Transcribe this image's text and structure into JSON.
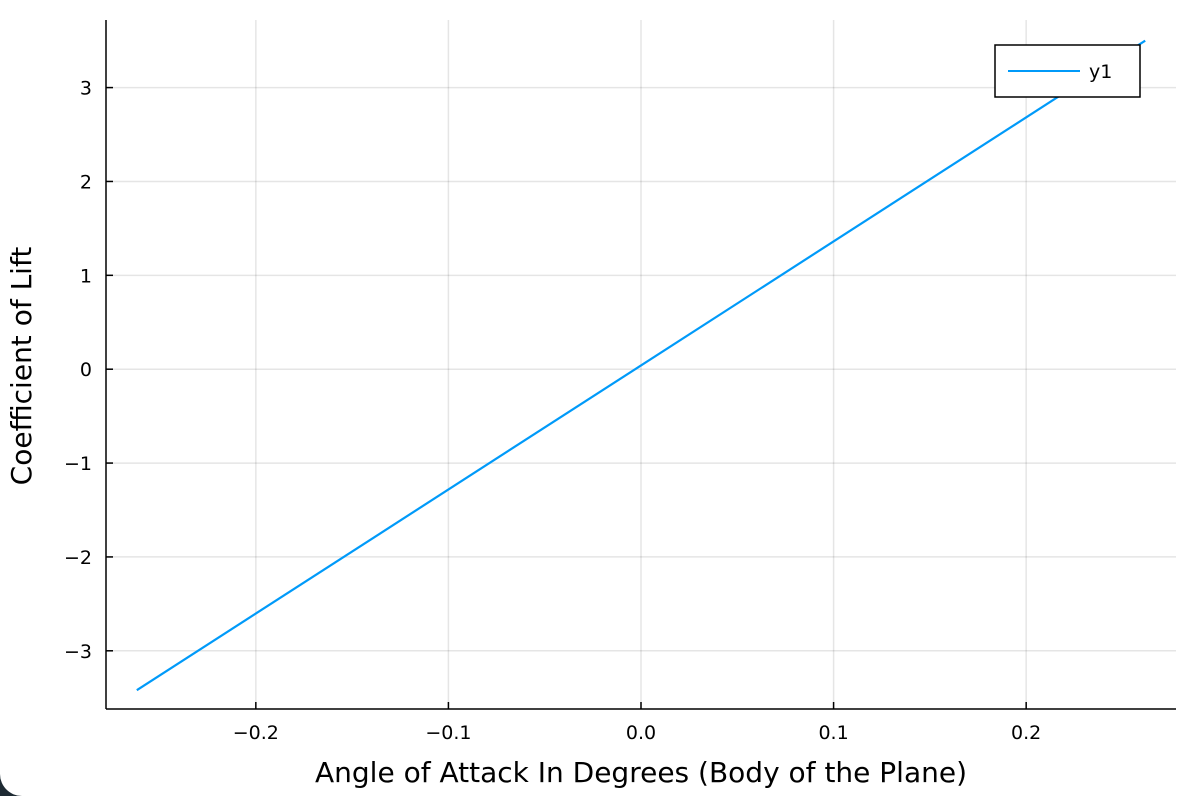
{
  "chart_data": {
    "type": "line",
    "title": "",
    "xlabel": "Angle of Attack In Degrees (Body of the Plane)",
    "ylabel": "Coefficient of Lift",
    "xlim": [
      -0.2778,
      0.2778
    ],
    "ylim": [
      -3.62,
      3.72
    ],
    "xticks": [
      -0.2,
      -0.1,
      0.0,
      0.1,
      0.2
    ],
    "xtick_labels": [
      "−0.2",
      "−0.1",
      "0.0",
      "0.1",
      "0.2"
    ],
    "yticks": [
      -3,
      -2,
      -1,
      0,
      1,
      2,
      3
    ],
    "ytick_labels": [
      "−3",
      "−2",
      "−1",
      "0",
      "1",
      "2",
      "3"
    ],
    "grid": true,
    "legend_position": "top-right",
    "series": [
      {
        "name": "y1",
        "color": "#009af9",
        "x": [
          -0.2618,
          0.2618
        ],
        "y": [
          -3.42,
          3.5
        ]
      }
    ]
  }
}
